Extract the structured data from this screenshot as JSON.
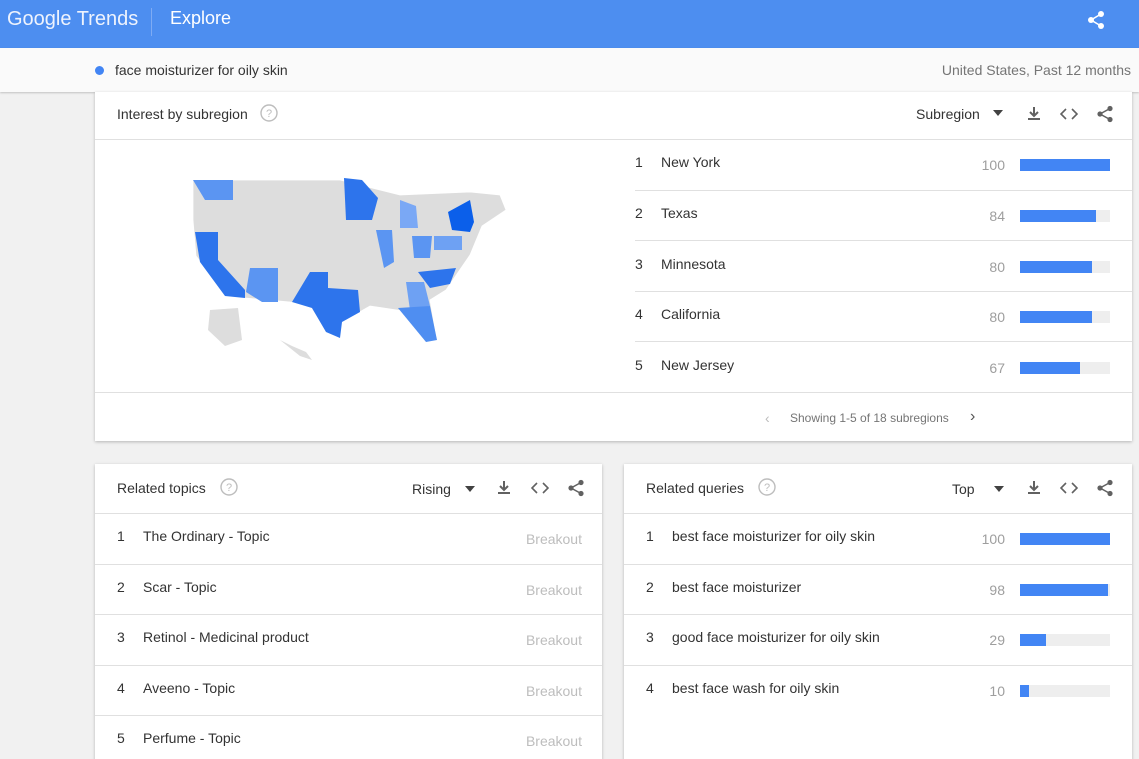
{
  "header": {
    "logo": "Google Trends",
    "title": "Explore"
  },
  "search": {
    "term": "face moisturizer for oily skin",
    "scope": "United States, Past 12 months"
  },
  "subregion": {
    "title": "Interest by subregion",
    "selector": "Subregion",
    "rows": [
      {
        "rank": 1,
        "name": "New York",
        "value": 100
      },
      {
        "rank": 2,
        "name": "Texas",
        "value": 84
      },
      {
        "rank": 3,
        "name": "Minnesota",
        "value": 80
      },
      {
        "rank": 4,
        "name": "California",
        "value": 80
      },
      {
        "rank": 5,
        "name": "New Jersey",
        "value": 67
      }
    ],
    "pagination": "Showing 1-5 of 18 subregions"
  },
  "topics": {
    "title": "Related topics",
    "selector": "Rising",
    "rows": [
      {
        "rank": 1,
        "name": "The Ordinary - Topic",
        "value": "Breakout"
      },
      {
        "rank": 2,
        "name": "Scar - Topic",
        "value": "Breakout"
      },
      {
        "rank": 3,
        "name": "Retinol - Medicinal product",
        "value": "Breakout"
      },
      {
        "rank": 4,
        "name": "Aveeno - Topic",
        "value": "Breakout"
      },
      {
        "rank": 5,
        "name": "Perfume - Topic",
        "value": "Breakout"
      }
    ]
  },
  "queries": {
    "title": "Related queries",
    "selector": "Top",
    "rows": [
      {
        "rank": 1,
        "name": "best face moisturizer for oily skin",
        "value": 100
      },
      {
        "rank": 2,
        "name": "best face moisturizer",
        "value": 98
      },
      {
        "rank": 3,
        "name": "good face moisturizer for oily skin",
        "value": 29
      },
      {
        "rank": 4,
        "name": "best face wash for oily skin",
        "value": 10
      }
    ]
  }
}
